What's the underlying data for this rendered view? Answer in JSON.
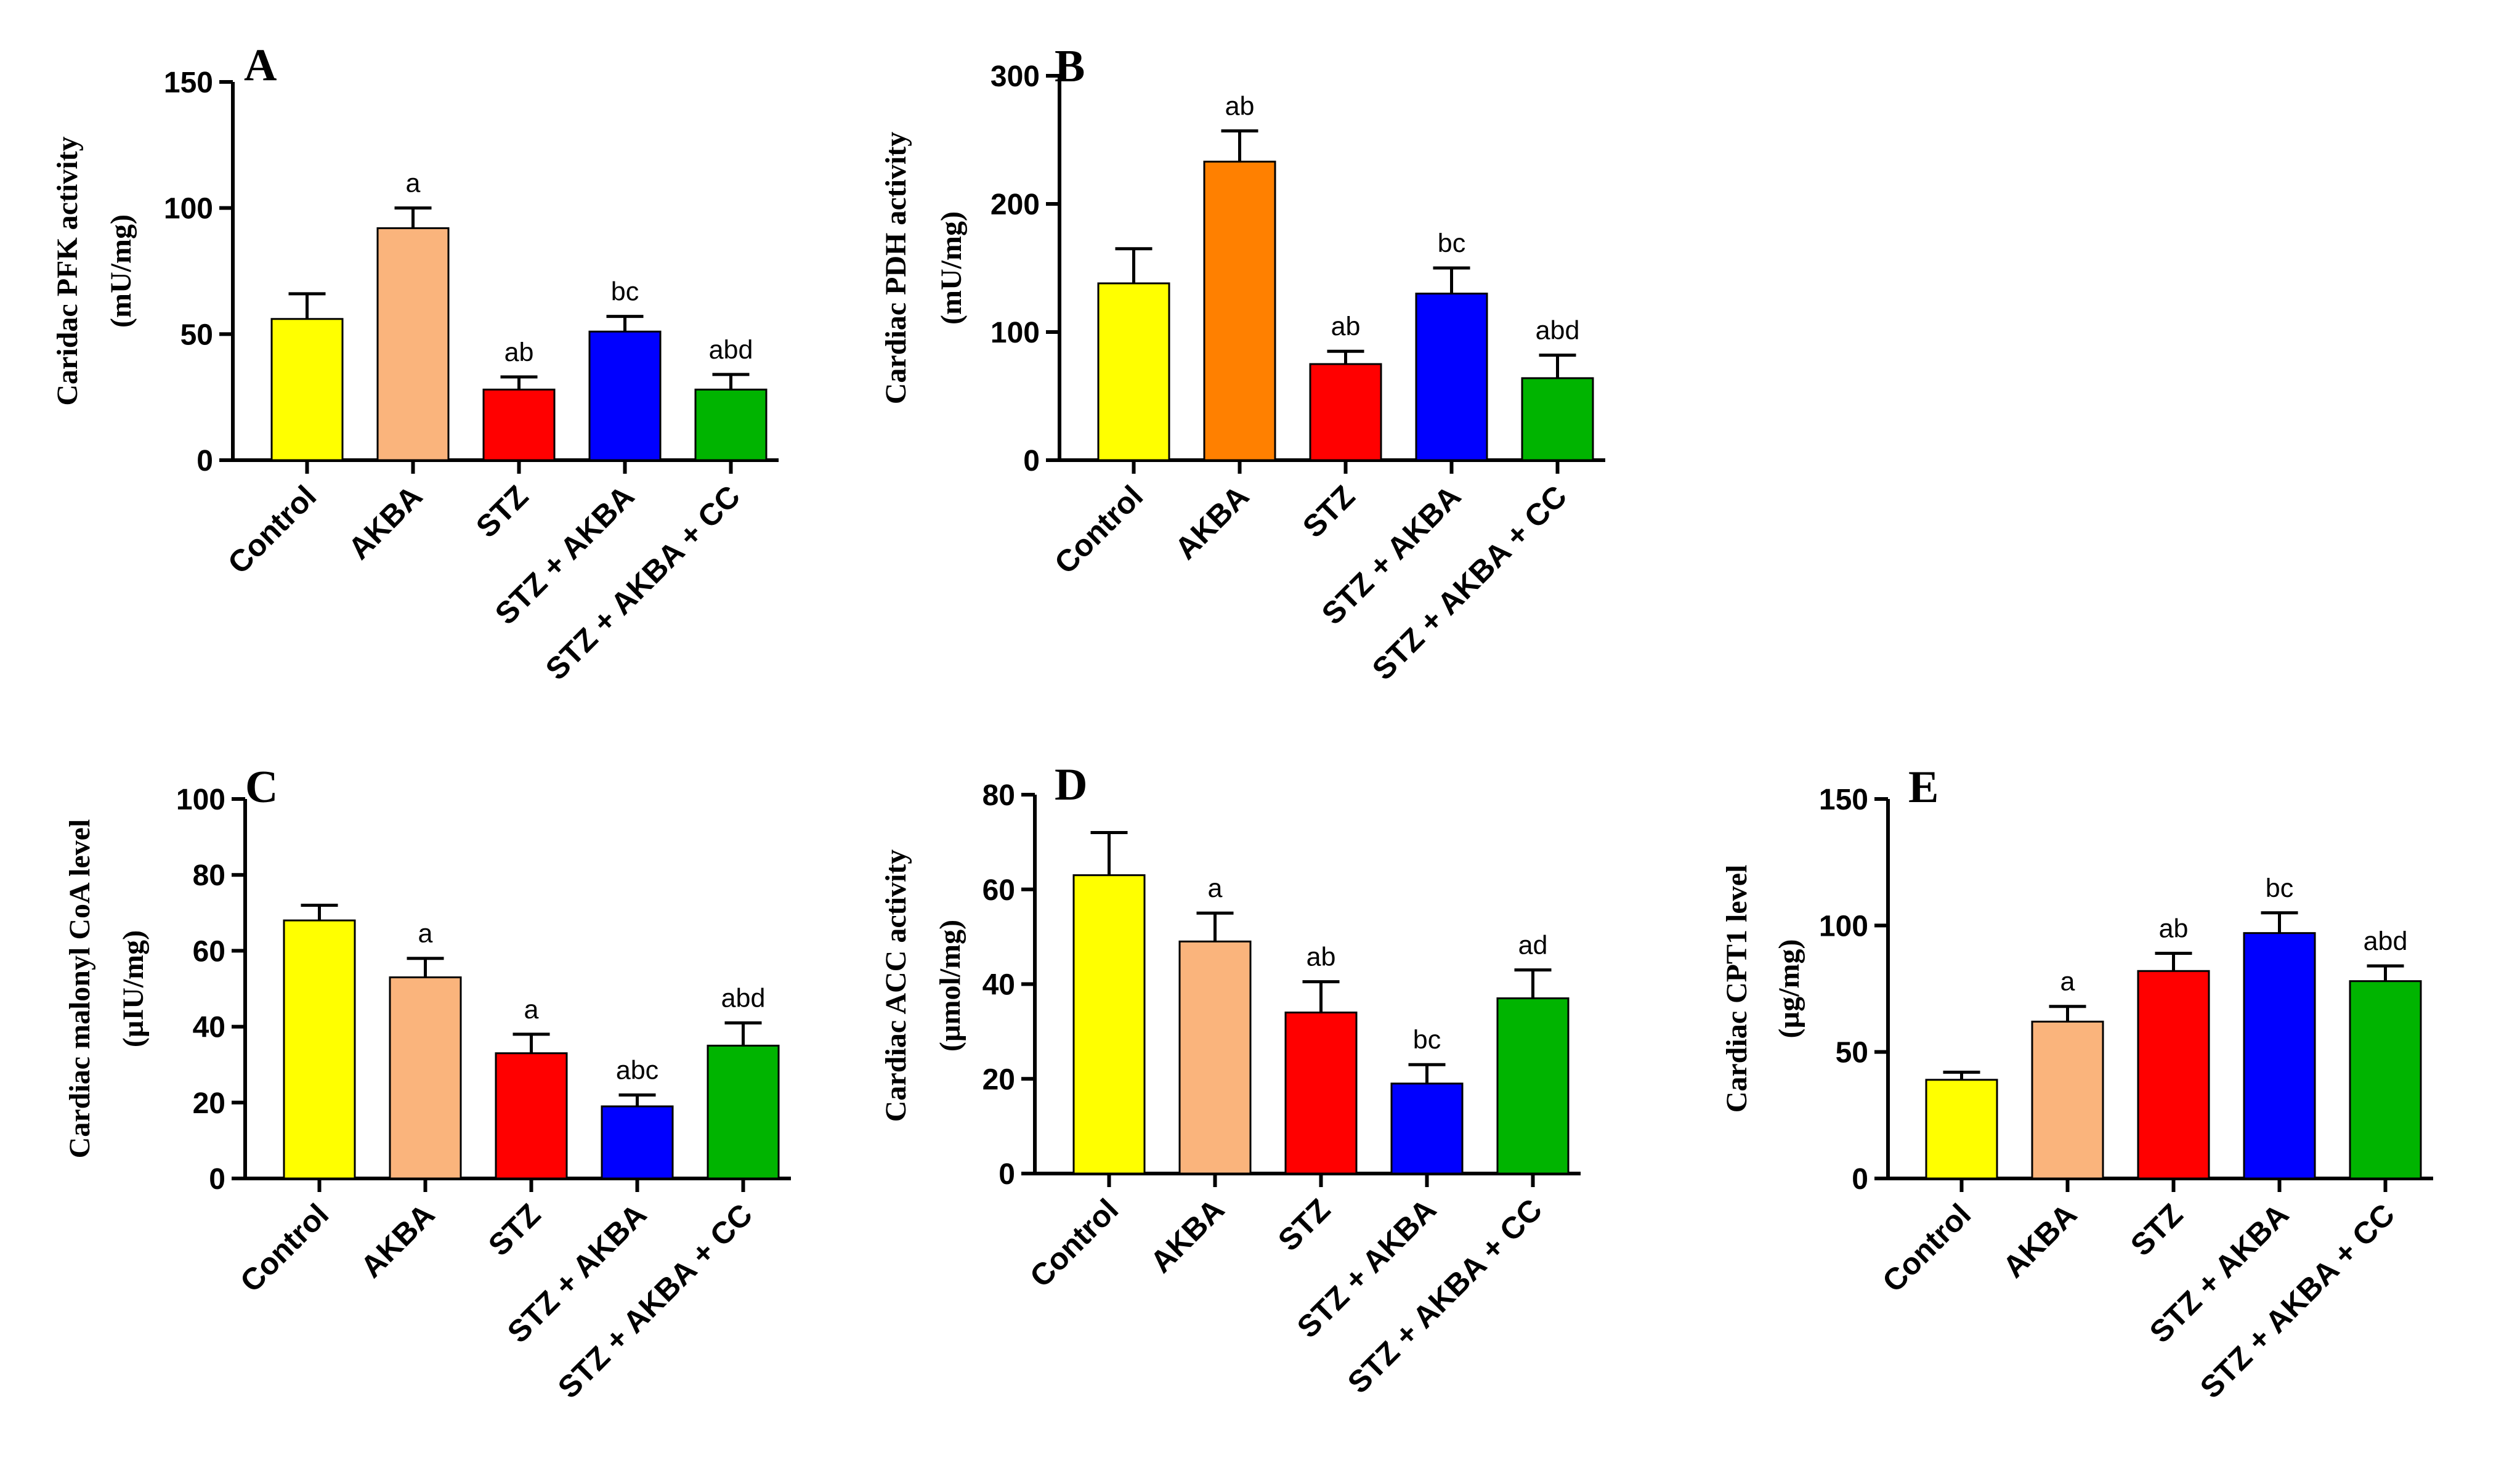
{
  "chart_data": [
    {
      "type": "bar",
      "panel": "A",
      "ylabel": [
        "Caridac PFK activity",
        "(mU/mg)"
      ],
      "ylim": [
        0,
        150
      ],
      "yticks": [
        "0",
        "50",
        "100",
        "150"
      ],
      "categories": [
        "Control",
        "AKBA",
        "STZ",
        "STZ + AKBA",
        "STZ + AKBA + CC"
      ],
      "values": [
        56,
        92,
        28,
        51,
        28
      ],
      "errors": [
        10,
        8,
        5,
        6,
        6
      ],
      "annotations": [
        "",
        "a",
        "ab",
        "bc",
        "abd"
      ],
      "colors": [
        "#ffff00",
        "#fab47c",
        "#ff0000",
        "#0000ff",
        "#00b400"
      ]
    },
    {
      "type": "bar",
      "panel": "B",
      "ylabel": [
        "Cardiac PDH activity",
        "(mU/mg)"
      ],
      "ylim": [
        0,
        300
      ],
      "yticks": [
        "0",
        "100",
        "200",
        "300"
      ],
      "categories": [
        "Control",
        "AKBA",
        "STZ",
        "STZ + AKBA",
        "STZ + AKBA + CC"
      ],
      "values": [
        138,
        233,
        75,
        130,
        64
      ],
      "errors": [
        27,
        24,
        10,
        20,
        18
      ],
      "annotations": [
        "",
        "ab",
        "ab",
        "bc",
        "abd"
      ],
      "colors": [
        "#ffff00",
        "#ff8000",
        "#ff0000",
        "#0000ff",
        "#00b400"
      ]
    },
    {
      "type": "bar",
      "panel": "C",
      "ylabel": [
        "Cardiac malonyl CoA level",
        "(µIU/mg)"
      ],
      "ylim": [
        0,
        100
      ],
      "yticks": [
        "0",
        "20",
        "40",
        "60",
        "80",
        "100"
      ],
      "categories": [
        "Control",
        "AKBA",
        "STZ",
        "STZ + AKBA",
        "STZ + AKBA + CC"
      ],
      "values": [
        68,
        53,
        33,
        19,
        35
      ],
      "errors": [
        4,
        5,
        5,
        3,
        6
      ],
      "annotations": [
        "",
        "a",
        "a",
        "abc",
        "abd"
      ],
      "colors": [
        "#ffff00",
        "#fab47c",
        "#ff0000",
        "#0000ff",
        "#00b400"
      ]
    },
    {
      "type": "bar",
      "panel": "D",
      "ylabel": [
        "Cardiac ACC activity",
        "(µmol/mg)"
      ],
      "ylim": [
        0,
        80
      ],
      "yticks": [
        "0",
        "20",
        "40",
        "60",
        "80"
      ],
      "categories": [
        "Control",
        "AKBA",
        "STZ",
        "STZ + AKBA",
        "STZ + AKBA + CC"
      ],
      "values": [
        63,
        49,
        34,
        19,
        37
      ],
      "errors": [
        9,
        6,
        6.5,
        4,
        6
      ],
      "annotations": [
        "",
        "a",
        "ab",
        "bc",
        "ad"
      ],
      "colors": [
        "#ffff00",
        "#fab47c",
        "#ff0000",
        "#0000ff",
        "#00b400"
      ]
    },
    {
      "type": "bar",
      "panel": "E",
      "ylabel": [
        "Cardiac  CPT1 level",
        "(µg/mg)"
      ],
      "ylim": [
        0,
        150
      ],
      "yticks": [
        "0",
        "50",
        "100",
        "150"
      ],
      "categories": [
        "Control",
        "AKBA",
        "STZ",
        "STZ + AKBA",
        "STZ + AKBA + CC"
      ],
      "values": [
        39,
        62,
        82,
        97,
        78
      ],
      "errors": [
        3,
        6,
        7,
        8,
        6
      ],
      "annotations": [
        "",
        "a",
        "ab",
        "bc",
        "abd"
      ],
      "colors": [
        "#ffff00",
        "#fab47c",
        "#ff0000",
        "#0000ff",
        "#00b400"
      ]
    }
  ]
}
